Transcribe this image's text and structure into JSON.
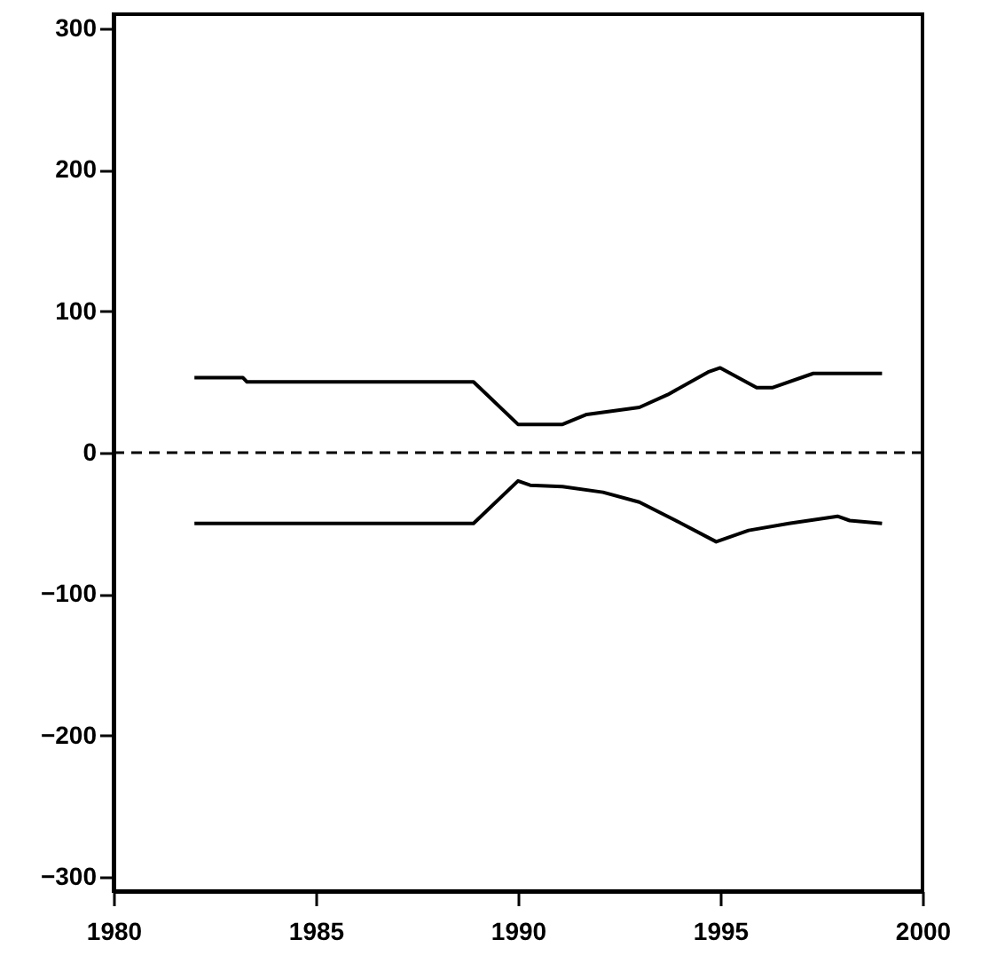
{
  "chart_data": {
    "type": "line",
    "xlim": [
      1980,
      2000
    ],
    "xticks": [
      1980,
      1985,
      1990,
      1995,
      2000
    ],
    "ylim": [
      -310,
      310
    ],
    "yticks": [
      -300,
      -200,
      -100,
      0,
      100,
      200,
      300
    ],
    "grid": false,
    "series": [
      {
        "color": "#000000",
        "x": [
          1982,
          1983.2,
          1983.3,
          1988.9,
          1990,
          1991.1,
          1991.7,
          1993,
          1993.7,
          1994.7,
          1995,
          1995.9,
          1996.3,
          1997.3,
          1999
        ],
        "values": [
          53,
          53,
          50,
          50,
          20,
          20,
          27,
          32,
          41,
          57,
          60,
          46,
          46,
          56,
          56
        ]
      },
      {
        "color": "#000000",
        "x": [
          1982,
          1988.9,
          1990,
          1990.3,
          1991.1,
          1992.1,
          1993,
          1993.9,
          1994.9,
          1995.7,
          1996.7,
          1997.9,
          1998.2,
          1999
        ],
        "values": [
          -50,
          -50,
          -20,
          -23,
          -24,
          -28,
          -35,
          -48,
          -63,
          -55,
          -50,
          -45,
          -48,
          -50
        ]
      }
    ],
    "ref_lines": [
      {
        "axis": "y",
        "value": 0,
        "color": "#000000",
        "line_style": "dashed"
      }
    ]
  }
}
